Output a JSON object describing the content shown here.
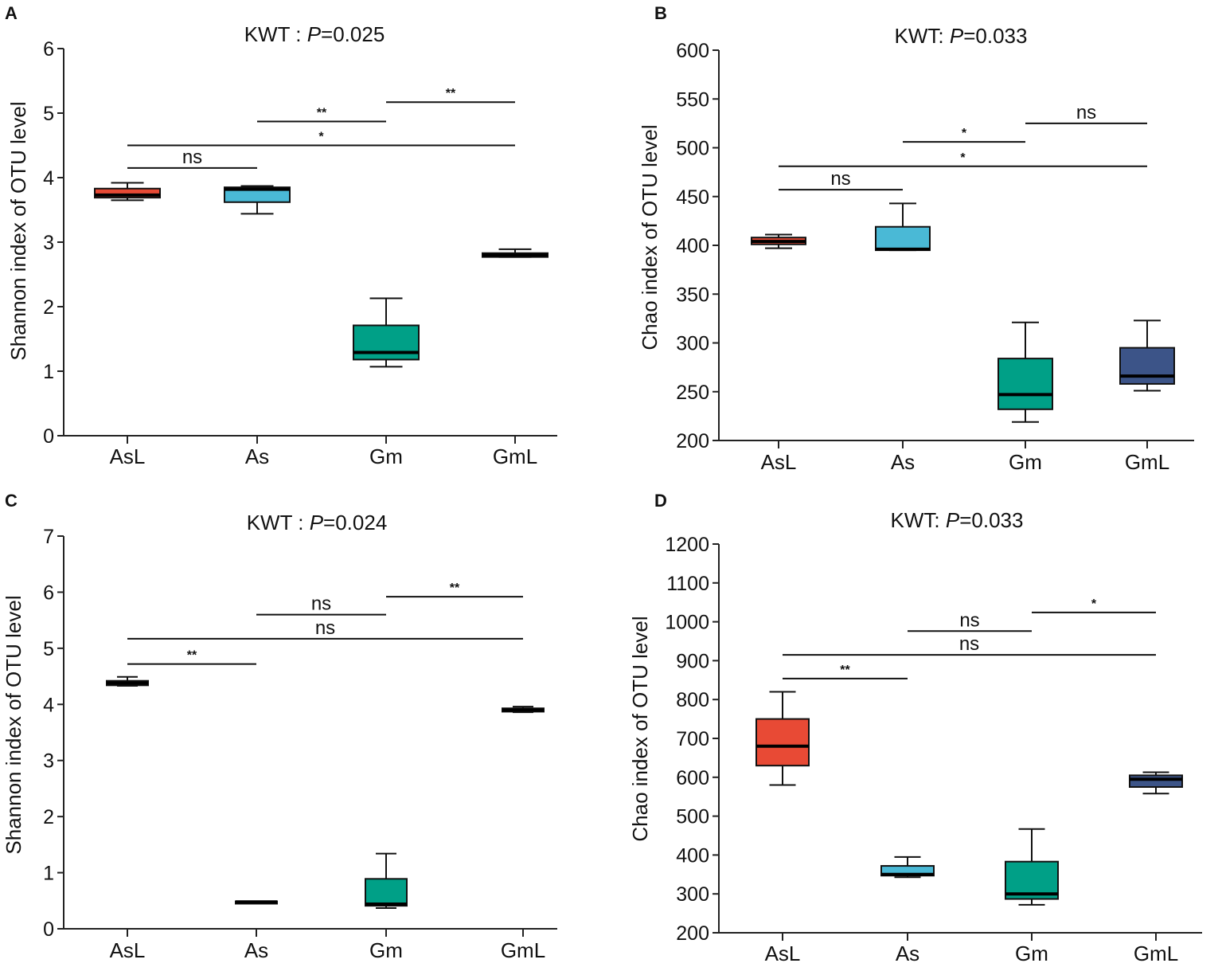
{
  "colors": {
    "AsL": "#e84a35",
    "As": "#4ab9d6",
    "Gm": "#00a087",
    "GmL": "#3c5488"
  },
  "chart_data": [
    {
      "panel": "A",
      "type": "box",
      "title_prefix": "KWT :",
      "p_label": "P",
      "p_value": "=0.025",
      "ylabel": "Shannon index of OTU level",
      "xlabel": "",
      "ylim": [
        0,
        6
      ],
      "yticks": [
        0,
        1,
        2,
        3,
        4,
        5,
        6
      ],
      "categories": [
        "AsL",
        "As",
        "Gm",
        "GmL"
      ],
      "boxes": [
        {
          "min": 3.65,
          "q1": 3.69,
          "median": 3.73,
          "q3": 3.83,
          "max": 3.92
        },
        {
          "min": 3.44,
          "q1": 3.62,
          "median": 3.82,
          "q3": 3.85,
          "max": 3.87
        },
        {
          "min": 1.07,
          "q1": 1.18,
          "median": 1.29,
          "q3": 1.71,
          "max": 2.13
        },
        {
          "min": 2.77,
          "q1": 2.77,
          "median": 2.8,
          "q3": 2.83,
          "max": 2.89
        }
      ],
      "comparisons": [
        {
          "from": 0,
          "to": 1,
          "y": 4.15,
          "label": "ns"
        },
        {
          "from": 0,
          "to": 3,
          "y": 4.5,
          "label": "*"
        },
        {
          "from": 1,
          "to": 2,
          "y": 4.87,
          "label": "**"
        },
        {
          "from": 2,
          "to": 3,
          "y": 5.17,
          "label": "**"
        }
      ]
    },
    {
      "panel": "B",
      "type": "box",
      "title_prefix": "KWT:",
      "p_label": "P",
      "p_value": "=0.033",
      "ylabel": "Chao index of OTU level",
      "xlabel": "",
      "ylim": [
        200,
        600
      ],
      "yticks": [
        200,
        250,
        300,
        350,
        400,
        450,
        500,
        550,
        600
      ],
      "categories": [
        "AsL",
        "As",
        "Gm",
        "GmL"
      ],
      "boxes": [
        {
          "min": 397,
          "q1": 401,
          "median": 404,
          "q3": 408,
          "max": 411
        },
        {
          "min": 395,
          "q1": 395,
          "median": 396,
          "q3": 419,
          "max": 443
        },
        {
          "min": 219,
          "q1": 232,
          "median": 247,
          "q3": 284,
          "max": 321
        },
        {
          "min": 251,
          "q1": 258,
          "median": 266,
          "q3": 295,
          "max": 323
        }
      ],
      "comparisons": [
        {
          "from": 0,
          "to": 1,
          "y": 457,
          "label": "ns"
        },
        {
          "from": 0,
          "to": 3,
          "y": 481,
          "label": "*"
        },
        {
          "from": 1,
          "to": 2,
          "y": 506,
          "label": "*"
        },
        {
          "from": 2,
          "to": 3,
          "y": 525,
          "label": "ns"
        }
      ]
    },
    {
      "panel": "C",
      "type": "box",
      "title_prefix": "KWT :",
      "p_label": "P",
      "p_value": "=0.024",
      "ylabel": "Shannon index of OTU level",
      "xlabel": "",
      "ylim": [
        0,
        7
      ],
      "yticks": [
        0,
        1,
        2,
        3,
        4,
        5,
        6,
        7
      ],
      "categories": [
        "AsL",
        "As",
        "Gm",
        "GmL"
      ],
      "boxes": [
        {
          "min": 4.33,
          "q1": 4.34,
          "median": 4.38,
          "q3": 4.42,
          "max": 4.49
        },
        {
          "min": 0.46,
          "q1": 0.46,
          "median": 0.48,
          "q3": 0.49,
          "max": 0.49
        },
        {
          "min": 0.37,
          "q1": 0.41,
          "median": 0.44,
          "q3": 0.89,
          "max": 1.34
        },
        {
          "min": 3.86,
          "q1": 3.87,
          "median": 3.9,
          "q3": 3.93,
          "max": 3.96
        }
      ],
      "comparisons": [
        {
          "from": 0,
          "to": 1,
          "y": 4.72,
          "label": "**"
        },
        {
          "from": 0,
          "to": 3,
          "y": 5.17,
          "label": "ns"
        },
        {
          "from": 1,
          "to": 2,
          "y": 5.6,
          "label": "ns"
        },
        {
          "from": 2,
          "to": 3,
          "y": 5.92,
          "label": "**"
        }
      ]
    },
    {
      "panel": "D",
      "type": "box",
      "title_prefix": "KWT:",
      "p_label": "P",
      "p_value": "=0.033",
      "ylabel": "Chao index of OTU level",
      "xlabel": "",
      "ylim": [
        200,
        1200
      ],
      "yticks": [
        200,
        300,
        400,
        500,
        600,
        700,
        800,
        900,
        1000,
        1100,
        1200
      ],
      "categories": [
        "AsL",
        "As",
        "Gm",
        "GmL"
      ],
      "boxes": [
        {
          "min": 580,
          "q1": 630,
          "median": 680,
          "q3": 750,
          "max": 820
        },
        {
          "min": 343,
          "q1": 347,
          "median": 350,
          "q3": 372,
          "max": 395
        },
        {
          "min": 272,
          "q1": 287,
          "median": 300,
          "q3": 383,
          "max": 467
        },
        {
          "min": 558,
          "q1": 575,
          "median": 595,
          "q3": 605,
          "max": 613
        }
      ],
      "comparisons": [
        {
          "from": 0,
          "to": 1,
          "y": 854,
          "label": "**"
        },
        {
          "from": 0,
          "to": 3,
          "y": 915,
          "label": "ns"
        },
        {
          "from": 1,
          "to": 2,
          "y": 976,
          "label": "ns"
        },
        {
          "from": 2,
          "to": 3,
          "y": 1024,
          "label": "*"
        }
      ]
    }
  ]
}
